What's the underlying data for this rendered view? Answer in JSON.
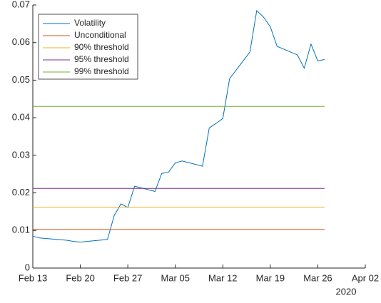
{
  "chart_data": {
    "type": "line",
    "x": [
      "2020-02-13",
      "2020-02-14",
      "2020-02-18",
      "2020-02-19",
      "2020-02-20",
      "2020-02-21",
      "2020-02-24",
      "2020-02-25",
      "2020-02-26",
      "2020-02-27",
      "2020-02-28",
      "2020-03-02",
      "2020-03-03",
      "2020-03-04",
      "2020-03-05",
      "2020-03-06",
      "2020-03-09",
      "2020-03-10",
      "2020-03-11",
      "2020-03-12",
      "2020-03-13",
      "2020-03-16",
      "2020-03-17",
      "2020-03-18",
      "2020-03-19",
      "2020-03-20",
      "2020-03-23",
      "2020-03-24",
      "2020-03-25",
      "2020-03-26",
      "2020-03-27"
    ],
    "series": [
      {
        "name": "Volatility",
        "color": "#0072BD",
        "values": [
          0.0085,
          0.008,
          0.0074,
          0.0071,
          0.0069,
          0.0071,
          0.0076,
          0.014,
          0.0171,
          0.0161,
          0.0218,
          0.0204,
          0.0252,
          0.0255,
          0.028,
          0.0285,
          0.0271,
          0.0373,
          0.0385,
          0.0398,
          0.0504,
          0.0575,
          0.0685,
          0.0668,
          0.0642,
          0.059,
          0.0567,
          0.0532,
          0.0596,
          0.0551,
          0.0555
        ]
      },
      {
        "name": "Unconditional",
        "color": "#D95319",
        "x": [
          "2020-02-13",
          "2020-03-27"
        ],
        "values": [
          0.0103,
          0.0103
        ]
      },
      {
        "name": "90% threshold",
        "color": "#EDB120",
        "x": [
          "2020-02-13",
          "2020-03-27"
        ],
        "values": [
          0.0162,
          0.0162
        ]
      },
      {
        "name": "95% threshold",
        "color": "#7E2F8E",
        "x": [
          "2020-02-13",
          "2020-03-27"
        ],
        "values": [
          0.0212,
          0.0212
        ]
      },
      {
        "name": "99% threshold",
        "color": "#77AC30",
        "x": [
          "2020-02-13",
          "2020-03-27"
        ],
        "values": [
          0.043,
          0.043
        ]
      }
    ],
    "xlim": [
      "2020-02-13",
      "2020-04-02"
    ],
    "xticks": [
      {
        "value": "2020-02-13",
        "label": "Feb 13"
      },
      {
        "value": "2020-02-20",
        "label": "Feb 20"
      },
      {
        "value": "2020-02-27",
        "label": "Feb 27"
      },
      {
        "value": "2020-03-05",
        "label": "Mar 05"
      },
      {
        "value": "2020-03-12",
        "label": "Mar 12"
      },
      {
        "value": "2020-03-19",
        "label": "Mar 19"
      },
      {
        "value": "2020-03-26",
        "label": "Mar 26"
      },
      {
        "value": "2020-04-02",
        "label": "Apr 02"
      }
    ],
    "x_year_label": "2020",
    "ylim": [
      0,
      0.07
    ],
    "yticks": [
      0,
      0.01,
      0.02,
      0.03,
      0.04,
      0.05,
      0.06,
      0.07
    ],
    "legend": "top-left"
  }
}
